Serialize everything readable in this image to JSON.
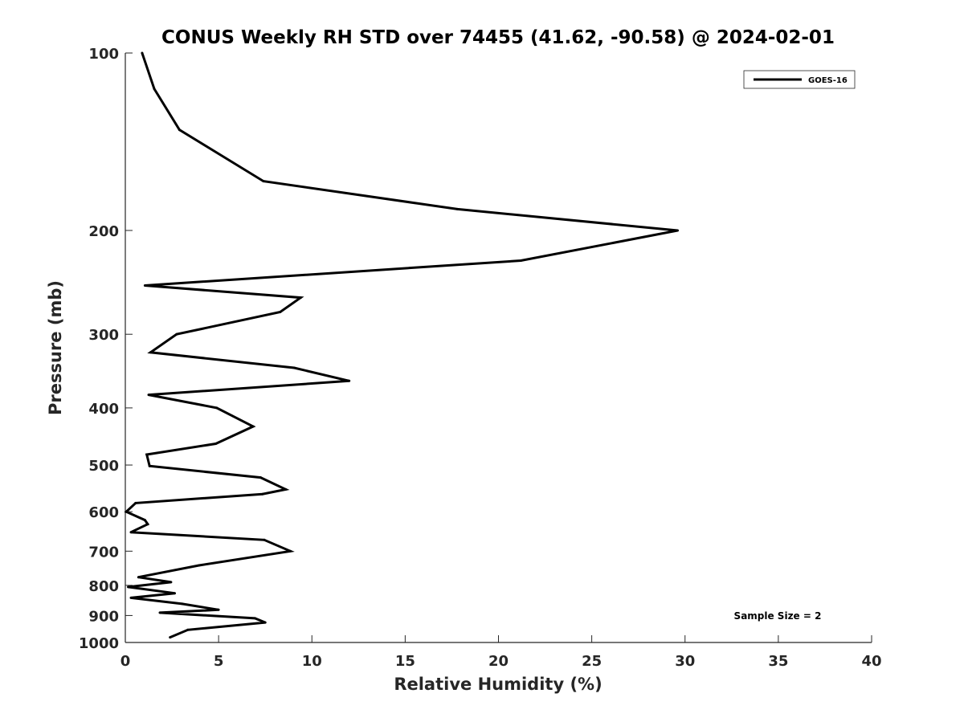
{
  "chart_data": {
    "type": "line",
    "title": "CONUS Weekly RH STD over 74455 (41.62, -90.58) @ 2024-02-01",
    "xlabel": "Relative Humidity (%)",
    "ylabel": "Pressure (mb)",
    "xlim": [
      0,
      40
    ],
    "ylim": [
      100,
      1000
    ],
    "yscale": "log",
    "y_reversed": true,
    "x_ticks": [
      "0",
      "5",
      "10",
      "15",
      "20",
      "25",
      "30",
      "35",
      "40"
    ],
    "y_ticks": [
      "100",
      "200",
      "300",
      "400",
      "500",
      "600",
      "700",
      "800",
      "900",
      "1000"
    ],
    "grid": false,
    "legend_position": "top-right",
    "annotation": "Sample Size = 2",
    "series": [
      {
        "name": "GOES-16",
        "color": "#000000",
        "x": [
          0.9,
          1.55,
          2.9,
          7.4,
          17.8,
          29.6,
          21.2,
          1.05,
          9.4,
          8.3,
          2.75,
          1.35,
          9.05,
          12.0,
          1.25,
          4.9,
          6.85,
          4.85,
          1.15,
          1.3,
          7.25,
          8.6,
          7.35,
          0.55,
          0.05,
          1.05,
          1.2,
          0.3,
          7.45,
          8.85,
          3.95,
          0.7,
          2.45,
          0.15,
          2.65,
          0.3,
          3.05,
          5.0,
          1.85,
          6.95,
          7.5,
          3.35,
          2.4
        ],
        "y": [
          100,
          115,
          135,
          165,
          184,
          200,
          225,
          248,
          260,
          275,
          300,
          322,
          342,
          360,
          380,
          400,
          430,
          460,
          480,
          502,
          525,
          550,
          560,
          580,
          600,
          620,
          630,
          650,
          670,
          700,
          740,
          775,
          790,
          805,
          825,
          840,
          860,
          880,
          890,
          910,
          925,
          952,
          980
        ]
      }
    ]
  }
}
